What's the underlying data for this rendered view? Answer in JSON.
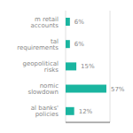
{
  "chart_data": {
    "type": "bar",
    "orientation": "horizontal",
    "categories": [
      "m retail accounts",
      "tal requirements",
      "geopolitical risks",
      "nomic slowdown",
      "al banks' policies"
    ],
    "values": [
      6,
      6,
      15,
      57,
      12
    ],
    "value_labels": [
      "6%",
      "6%",
      "15%",
      "57%",
      "12%"
    ],
    "data_labels": true,
    "color": "#1ab5a0",
    "xlim": [
      0,
      62
    ],
    "xticks": [
      0,
      20,
      40,
      60
    ],
    "grid": true,
    "tick_labels": "y"
  }
}
